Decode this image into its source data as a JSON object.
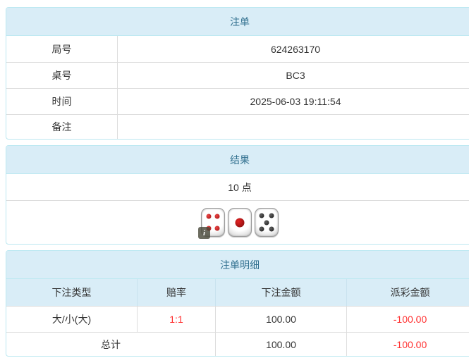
{
  "colors": {
    "panel_border": "#bce8f1",
    "heading_bg": "#d9edf7",
    "heading_text": "#31708f",
    "row_border": "#dddddd",
    "text": "#333333",
    "negative": "#ff2f2f"
  },
  "bet_info": {
    "title": "注单",
    "rows": [
      {
        "label": "局号",
        "value": "624263170"
      },
      {
        "label": "桌号",
        "value": "BC3"
      },
      {
        "label": "时间",
        "value": "2025-06-03 19:11:54"
      },
      {
        "label": "备注",
        "value": ""
      }
    ]
  },
  "result": {
    "title": "结果",
    "points": "10 点",
    "dice": [
      {
        "value": 4,
        "color": "#991111",
        "highlight": "#ee4444"
      },
      {
        "value": 1,
        "color": "#7a0c0c",
        "highlight": "#e62222"
      },
      {
        "value": 5,
        "color": "#161616",
        "highlight": "#606060"
      }
    ],
    "info_icon_label": "i"
  },
  "bet_detail": {
    "title": "注单明细",
    "columns": [
      "下注类型",
      "赔率",
      "下注金额",
      "派彩金额"
    ],
    "rows": [
      {
        "type": "大/小(大)",
        "odds": "1:1",
        "bet_amount": "100.00",
        "payout": "-100.00"
      }
    ],
    "total": {
      "label": "总计",
      "bet_amount": "100.00",
      "payout": "-100.00"
    }
  }
}
